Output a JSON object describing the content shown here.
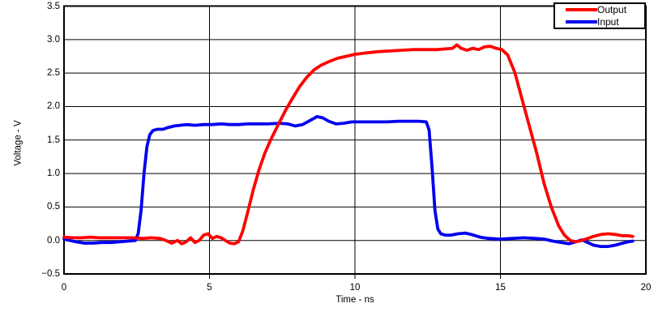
{
  "chart_data": {
    "type": "line",
    "title": "",
    "xlabel": "Time - ns",
    "ylabel": "Voltage - V",
    "xlim": [
      0,
      20
    ],
    "ylim": [
      -0.5,
      3.5
    ],
    "grid": true,
    "background": "#ffffff",
    "axis_color": "#000000",
    "x_gridlines": [
      5,
      10,
      15
    ],
    "y_gridlines": [
      0,
      0.5,
      1,
      1.5,
      2,
      2.5,
      3
    ],
    "x_ticks": [
      {
        "value": 0,
        "label": "0"
      },
      {
        "value": 5,
        "label": "5"
      },
      {
        "value": 10,
        "label": "10"
      },
      {
        "value": 15,
        "label": "15"
      },
      {
        "value": 20,
        "label": "20"
      }
    ],
    "y_ticks": [
      {
        "value": 3.5,
        "label": "3.5"
      },
      {
        "value": 3.0,
        "label": "3.0"
      },
      {
        "value": 2.5,
        "label": "2.5"
      },
      {
        "value": 2.0,
        "label": "2.0"
      },
      {
        "value": 1.5,
        "label": "1.5"
      },
      {
        "value": 1.0,
        "label": "1.0"
      },
      {
        "value": 0.5,
        "label": "0.5"
      },
      {
        "value": 0.0,
        "label": "0.0"
      },
      {
        "value": -0.5,
        "label": "−0.5"
      }
    ],
    "legend_position": "top-right",
    "series": [
      {
        "name": "Input",
        "color": "#0000ee",
        "points": [
          [
            0,
            0.02
          ],
          [
            0.2,
            0.0
          ],
          [
            0.4,
            -0.02
          ],
          [
            0.7,
            -0.04
          ],
          [
            1.0,
            -0.04
          ],
          [
            1.3,
            -0.03
          ],
          [
            1.6,
            -0.03
          ],
          [
            1.9,
            -0.02
          ],
          [
            2.2,
            -0.01
          ],
          [
            2.45,
            0.0
          ],
          [
            2.55,
            0.1
          ],
          [
            2.65,
            0.45
          ],
          [
            2.75,
            1.0
          ],
          [
            2.85,
            1.4
          ],
          [
            2.95,
            1.58
          ],
          [
            3.05,
            1.64
          ],
          [
            3.2,
            1.66
          ],
          [
            3.4,
            1.66
          ],
          [
            3.6,
            1.69
          ],
          [
            3.8,
            1.71
          ],
          [
            4.0,
            1.72
          ],
          [
            4.2,
            1.73
          ],
          [
            4.5,
            1.72
          ],
          [
            4.8,
            1.73
          ],
          [
            5.1,
            1.73
          ],
          [
            5.4,
            1.74
          ],
          [
            5.7,
            1.73
          ],
          [
            6.0,
            1.73
          ],
          [
            6.3,
            1.74
          ],
          [
            6.6,
            1.74
          ],
          [
            7.0,
            1.74
          ],
          [
            7.4,
            1.75
          ],
          [
            7.7,
            1.74
          ],
          [
            7.95,
            1.71
          ],
          [
            8.2,
            1.73
          ],
          [
            8.45,
            1.79
          ],
          [
            8.7,
            1.85
          ],
          [
            8.9,
            1.83
          ],
          [
            9.1,
            1.78
          ],
          [
            9.35,
            1.74
          ],
          [
            9.6,
            1.75
          ],
          [
            9.9,
            1.77
          ],
          [
            10.3,
            1.77
          ],
          [
            10.7,
            1.77
          ],
          [
            11.1,
            1.77
          ],
          [
            11.5,
            1.78
          ],
          [
            11.9,
            1.78
          ],
          [
            12.2,
            1.78
          ],
          [
            12.45,
            1.77
          ],
          [
            12.55,
            1.65
          ],
          [
            12.65,
            1.1
          ],
          [
            12.75,
            0.45
          ],
          [
            12.85,
            0.17
          ],
          [
            12.95,
            0.1
          ],
          [
            13.1,
            0.08
          ],
          [
            13.3,
            0.08
          ],
          [
            13.55,
            0.1
          ],
          [
            13.8,
            0.11
          ],
          [
            14.0,
            0.09
          ],
          [
            14.3,
            0.05
          ],
          [
            14.6,
            0.03
          ],
          [
            15.0,
            0.02
          ],
          [
            15.4,
            0.03
          ],
          [
            15.8,
            0.04
          ],
          [
            16.2,
            0.03
          ],
          [
            16.5,
            0.02
          ],
          [
            16.8,
            -0.01
          ],
          [
            17.1,
            -0.03
          ],
          [
            17.35,
            -0.05
          ],
          [
            17.6,
            -0.02
          ],
          [
            17.8,
            0.01
          ],
          [
            18.0,
            -0.03
          ],
          [
            18.2,
            -0.07
          ],
          [
            18.45,
            -0.09
          ],
          [
            18.7,
            -0.09
          ],
          [
            18.95,
            -0.07
          ],
          [
            19.2,
            -0.04
          ],
          [
            19.4,
            -0.02
          ],
          [
            19.55,
            -0.01
          ]
        ]
      },
      {
        "name": "Output",
        "color": "#ff0000",
        "points": [
          [
            0,
            0.05
          ],
          [
            0.3,
            0.04
          ],
          [
            0.6,
            0.04
          ],
          [
            0.9,
            0.05
          ],
          [
            1.2,
            0.04
          ],
          [
            1.5,
            0.04
          ],
          [
            1.8,
            0.04
          ],
          [
            2.1,
            0.04
          ],
          [
            2.4,
            0.04
          ],
          [
            2.7,
            0.03
          ],
          [
            3.0,
            0.04
          ],
          [
            3.3,
            0.03
          ],
          [
            3.5,
            0.0
          ],
          [
            3.7,
            -0.04
          ],
          [
            3.9,
            0.0
          ],
          [
            4.05,
            -0.05
          ],
          [
            4.2,
            -0.02
          ],
          [
            4.35,
            0.04
          ],
          [
            4.5,
            -0.03
          ],
          [
            4.65,
            0.0
          ],
          [
            4.8,
            0.08
          ],
          [
            4.95,
            0.1
          ],
          [
            5.1,
            0.03
          ],
          [
            5.25,
            0.06
          ],
          [
            5.4,
            0.04
          ],
          [
            5.55,
            0.0
          ],
          [
            5.7,
            -0.04
          ],
          [
            5.85,
            -0.05
          ],
          [
            6.0,
            -0.02
          ],
          [
            6.15,
            0.15
          ],
          [
            6.3,
            0.4
          ],
          [
            6.5,
            0.75
          ],
          [
            6.7,
            1.05
          ],
          [
            6.9,
            1.3
          ],
          [
            7.1,
            1.5
          ],
          [
            7.35,
            1.72
          ],
          [
            7.6,
            1.93
          ],
          [
            7.85,
            2.12
          ],
          [
            8.1,
            2.3
          ],
          [
            8.35,
            2.44
          ],
          [
            8.6,
            2.55
          ],
          [
            8.85,
            2.62
          ],
          [
            9.1,
            2.67
          ],
          [
            9.4,
            2.72
          ],
          [
            9.7,
            2.75
          ],
          [
            10.0,
            2.78
          ],
          [
            10.4,
            2.8
          ],
          [
            10.8,
            2.82
          ],
          [
            11.2,
            2.83
          ],
          [
            11.6,
            2.84
          ],
          [
            12.0,
            2.85
          ],
          [
            12.4,
            2.85
          ],
          [
            12.8,
            2.85
          ],
          [
            13.1,
            2.86
          ],
          [
            13.35,
            2.87
          ],
          [
            13.5,
            2.92
          ],
          [
            13.65,
            2.87
          ],
          [
            13.85,
            2.84
          ],
          [
            14.05,
            2.87
          ],
          [
            14.25,
            2.85
          ],
          [
            14.45,
            2.89
          ],
          [
            14.65,
            2.9
          ],
          [
            14.85,
            2.87
          ],
          [
            15.05,
            2.85
          ],
          [
            15.25,
            2.77
          ],
          [
            15.5,
            2.5
          ],
          [
            15.75,
            2.1
          ],
          [
            16.0,
            1.7
          ],
          [
            16.25,
            1.3
          ],
          [
            16.5,
            0.85
          ],
          [
            16.75,
            0.5
          ],
          [
            17.0,
            0.22
          ],
          [
            17.2,
            0.08
          ],
          [
            17.4,
            0.0
          ],
          [
            17.6,
            -0.02
          ],
          [
            17.8,
            0.0
          ],
          [
            18.0,
            0.03
          ],
          [
            18.2,
            0.06
          ],
          [
            18.45,
            0.09
          ],
          [
            18.7,
            0.1
          ],
          [
            18.95,
            0.09
          ],
          [
            19.2,
            0.07
          ],
          [
            19.4,
            0.07
          ],
          [
            19.55,
            0.06
          ]
        ]
      }
    ],
    "legend_entries": [
      {
        "label": "Output"
      },
      {
        "label": "Input"
      }
    ]
  }
}
